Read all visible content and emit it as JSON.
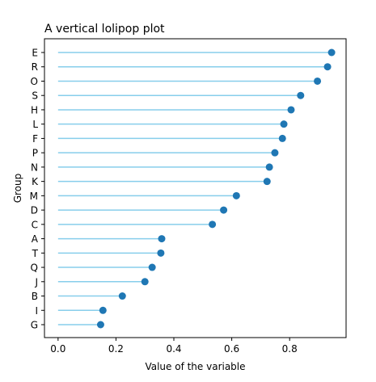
{
  "chart_data": {
    "type": "lollipop",
    "orientation": "horizontal",
    "title": "A vertical lolipop plot",
    "xlabel": "Value of the variable",
    "ylabel": "Group",
    "xlim": [
      -0.047,
      0.995
    ],
    "xticks": [
      0.0,
      0.2,
      0.4,
      0.6,
      0.8
    ],
    "xtick_labels": [
      "0.0",
      "0.2",
      "0.4",
      "0.6",
      "0.8"
    ],
    "grid": false,
    "colors": {
      "stem": "#87ceeb",
      "marker": "#1f77b4"
    },
    "categories": [
      "G",
      "I",
      "B",
      "J",
      "Q",
      "T",
      "A",
      "C",
      "D",
      "M",
      "K",
      "N",
      "P",
      "F",
      "L",
      "H",
      "S",
      "O",
      "R",
      "E"
    ],
    "values": [
      0.147,
      0.155,
      0.222,
      0.3,
      0.325,
      0.355,
      0.358,
      0.533,
      0.572,
      0.616,
      0.722,
      0.73,
      0.749,
      0.775,
      0.78,
      0.805,
      0.838,
      0.896,
      0.931,
      0.945
    ]
  }
}
